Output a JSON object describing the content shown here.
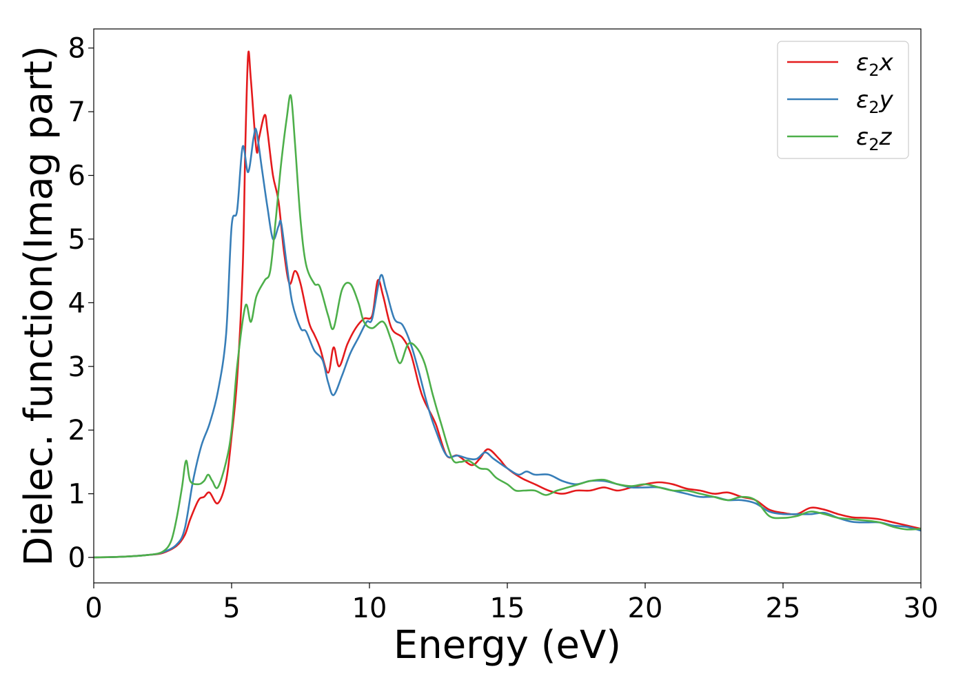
{
  "chart_data": {
    "type": "line",
    "xlabel": "Energy (eV)",
    "ylabel": "Dielec. function(Imag part)",
    "xlim": [
      0,
      30
    ],
    "ylim": [
      -0.4,
      8.3
    ],
    "xticks": [
      0,
      5,
      10,
      15,
      20,
      25,
      30
    ],
    "yticks": [
      0,
      1,
      2,
      3,
      4,
      5,
      6,
      7,
      8
    ],
    "grid": false,
    "legend_position": "top-right",
    "series": [
      {
        "name": "ε₂x",
        "legend_base": "ε",
        "legend_sub": "2",
        "legend_suffix": "x",
        "color": "#e41a1c",
        "points": [
          [
            0,
            0
          ],
          [
            1,
            0.01
          ],
          [
            2,
            0.04
          ],
          [
            2.5,
            0.07
          ],
          [
            3,
            0.18
          ],
          [
            3.3,
            0.35
          ],
          [
            3.5,
            0.6
          ],
          [
            3.8,
            0.9
          ],
          [
            4.0,
            0.95
          ],
          [
            4.2,
            1.02
          ],
          [
            4.5,
            0.85
          ],
          [
            4.8,
            1.2
          ],
          [
            5.0,
            1.9
          ],
          [
            5.2,
            2.8
          ],
          [
            5.4,
            4.5
          ],
          [
            5.5,
            6.5
          ],
          [
            5.6,
            7.9
          ],
          [
            5.7,
            7.5
          ],
          [
            5.9,
            6.4
          ],
          [
            6.0,
            6.6
          ],
          [
            6.2,
            6.95
          ],
          [
            6.3,
            6.7
          ],
          [
            6.5,
            6.0
          ],
          [
            6.7,
            5.6
          ],
          [
            6.9,
            4.8
          ],
          [
            7.1,
            4.3
          ],
          [
            7.3,
            4.5
          ],
          [
            7.5,
            4.3
          ],
          [
            7.8,
            3.7
          ],
          [
            8.0,
            3.5
          ],
          [
            8.2,
            3.3
          ],
          [
            8.5,
            2.9
          ],
          [
            8.7,
            3.3
          ],
          [
            8.9,
            3.0
          ],
          [
            9.2,
            3.35
          ],
          [
            9.5,
            3.6
          ],
          [
            9.8,
            3.75
          ],
          [
            10.1,
            3.8
          ],
          [
            10.3,
            4.35
          ],
          [
            10.5,
            4.1
          ],
          [
            10.8,
            3.6
          ],
          [
            11.2,
            3.45
          ],
          [
            11.5,
            3.2
          ],
          [
            11.8,
            2.7
          ],
          [
            12.0,
            2.45
          ],
          [
            12.4,
            2.1
          ],
          [
            12.8,
            1.6
          ],
          [
            13.2,
            1.6
          ],
          [
            13.7,
            1.45
          ],
          [
            14.0,
            1.55
          ],
          [
            14.3,
            1.7
          ],
          [
            14.7,
            1.55
          ],
          [
            15.0,
            1.4
          ],
          [
            15.5,
            1.25
          ],
          [
            16.0,
            1.15
          ],
          [
            16.5,
            1.05
          ],
          [
            17.0,
            1.0
          ],
          [
            17.5,
            1.05
          ],
          [
            18.0,
            1.05
          ],
          [
            18.5,
            1.1
          ],
          [
            19.0,
            1.05
          ],
          [
            19.5,
            1.1
          ],
          [
            20.0,
            1.15
          ],
          [
            20.5,
            1.18
          ],
          [
            21.0,
            1.15
          ],
          [
            21.5,
            1.08
          ],
          [
            22.0,
            1.05
          ],
          [
            22.5,
            1.0
          ],
          [
            23.0,
            1.02
          ],
          [
            23.5,
            0.95
          ],
          [
            24.0,
            0.9
          ],
          [
            24.5,
            0.75
          ],
          [
            25.0,
            0.7
          ],
          [
            25.5,
            0.68
          ],
          [
            26.0,
            0.78
          ],
          [
            26.5,
            0.75
          ],
          [
            27.0,
            0.68
          ],
          [
            27.5,
            0.63
          ],
          [
            28.0,
            0.62
          ],
          [
            28.5,
            0.6
          ],
          [
            29.0,
            0.55
          ],
          [
            29.5,
            0.5
          ],
          [
            30.0,
            0.45
          ]
        ]
      },
      {
        "name": "ε₂y",
        "legend_base": "ε",
        "legend_sub": "2",
        "legend_suffix": "y",
        "color": "#377eb8",
        "points": [
          [
            0,
            0
          ],
          [
            1,
            0.01
          ],
          [
            2,
            0.04
          ],
          [
            2.5,
            0.08
          ],
          [
            3,
            0.2
          ],
          [
            3.3,
            0.45
          ],
          [
            3.6,
            1.2
          ],
          [
            3.9,
            1.75
          ],
          [
            4.2,
            2.1
          ],
          [
            4.5,
            2.6
          ],
          [
            4.8,
            3.5
          ],
          [
            5.0,
            5.2
          ],
          [
            5.2,
            5.45
          ],
          [
            5.4,
            6.45
          ],
          [
            5.6,
            6.05
          ],
          [
            5.8,
            6.6
          ],
          [
            5.9,
            6.7
          ],
          [
            6.1,
            6.1
          ],
          [
            6.3,
            5.5
          ],
          [
            6.5,
            5.0
          ],
          [
            6.7,
            5.2
          ],
          [
            6.8,
            5.25
          ],
          [
            7.0,
            4.6
          ],
          [
            7.2,
            4.0
          ],
          [
            7.5,
            3.6
          ],
          [
            7.7,
            3.55
          ],
          [
            8.0,
            3.25
          ],
          [
            8.3,
            3.1
          ],
          [
            8.5,
            2.75
          ],
          [
            8.7,
            2.55
          ],
          [
            9.0,
            2.85
          ],
          [
            9.3,
            3.2
          ],
          [
            9.6,
            3.45
          ],
          [
            9.9,
            3.7
          ],
          [
            10.1,
            3.75
          ],
          [
            10.4,
            4.42
          ],
          [
            10.6,
            4.2
          ],
          [
            10.9,
            3.75
          ],
          [
            11.2,
            3.65
          ],
          [
            11.5,
            3.35
          ],
          [
            11.8,
            2.9
          ],
          [
            12.1,
            2.4
          ],
          [
            12.4,
            2.0
          ],
          [
            12.8,
            1.6
          ],
          [
            13.2,
            1.6
          ],
          [
            13.6,
            1.55
          ],
          [
            13.9,
            1.55
          ],
          [
            14.2,
            1.65
          ],
          [
            14.5,
            1.55
          ],
          [
            15.0,
            1.4
          ],
          [
            15.4,
            1.3
          ],
          [
            15.7,
            1.35
          ],
          [
            16.0,
            1.3
          ],
          [
            16.5,
            1.3
          ],
          [
            17.0,
            1.2
          ],
          [
            17.5,
            1.15
          ],
          [
            18.0,
            1.2
          ],
          [
            18.5,
            1.2
          ],
          [
            19.0,
            1.15
          ],
          [
            19.5,
            1.1
          ],
          [
            20.0,
            1.1
          ],
          [
            20.5,
            1.1
          ],
          [
            21.0,
            1.05
          ],
          [
            21.5,
            1.0
          ],
          [
            22.0,
            0.95
          ],
          [
            22.5,
            0.95
          ],
          [
            23.0,
            0.9
          ],
          [
            23.5,
            0.9
          ],
          [
            24.0,
            0.85
          ],
          [
            24.5,
            0.72
          ],
          [
            25.0,
            0.68
          ],
          [
            25.5,
            0.68
          ],
          [
            26.0,
            0.68
          ],
          [
            26.5,
            0.7
          ],
          [
            27.0,
            0.62
          ],
          [
            27.5,
            0.56
          ],
          [
            28.0,
            0.55
          ],
          [
            28.5,
            0.55
          ],
          [
            29.0,
            0.5
          ],
          [
            29.5,
            0.48
          ],
          [
            30.0,
            0.42
          ]
        ]
      },
      {
        "name": "ε₂z",
        "legend_base": "ε",
        "legend_sub": "2",
        "legend_suffix": "z",
        "color": "#4daf4a",
        "points": [
          [
            0,
            0
          ],
          [
            1,
            0.01
          ],
          [
            2,
            0.04
          ],
          [
            2.5,
            0.09
          ],
          [
            2.8,
            0.25
          ],
          [
            3.0,
            0.6
          ],
          [
            3.2,
            1.1
          ],
          [
            3.35,
            1.52
          ],
          [
            3.5,
            1.2
          ],
          [
            3.8,
            1.15
          ],
          [
            4.0,
            1.2
          ],
          [
            4.15,
            1.3
          ],
          [
            4.3,
            1.2
          ],
          [
            4.5,
            1.1
          ],
          [
            4.8,
            1.5
          ],
          [
            5.0,
            2.0
          ],
          [
            5.2,
            3.0
          ],
          [
            5.5,
            3.95
          ],
          [
            5.7,
            3.7
          ],
          [
            5.9,
            4.1
          ],
          [
            6.2,
            4.35
          ],
          [
            6.4,
            4.5
          ],
          [
            6.6,
            5.3
          ],
          [
            6.8,
            6.2
          ],
          [
            7.0,
            6.9
          ],
          [
            7.15,
            7.25
          ],
          [
            7.3,
            6.5
          ],
          [
            7.5,
            5.3
          ],
          [
            7.7,
            4.6
          ],
          [
            8.0,
            4.3
          ],
          [
            8.2,
            4.25
          ],
          [
            8.5,
            3.8
          ],
          [
            8.7,
            3.6
          ],
          [
            9.0,
            4.2
          ],
          [
            9.3,
            4.3
          ],
          [
            9.6,
            4.0
          ],
          [
            9.8,
            3.7
          ],
          [
            10.1,
            3.6
          ],
          [
            10.5,
            3.7
          ],
          [
            10.8,
            3.4
          ],
          [
            11.1,
            3.05
          ],
          [
            11.4,
            3.35
          ],
          [
            11.7,
            3.3
          ],
          [
            12.0,
            3.05
          ],
          [
            12.3,
            2.55
          ],
          [
            12.6,
            2.1
          ],
          [
            13.0,
            1.55
          ],
          [
            13.3,
            1.5
          ],
          [
            13.6,
            1.52
          ],
          [
            14.0,
            1.4
          ],
          [
            14.3,
            1.38
          ],
          [
            14.6,
            1.25
          ],
          [
            15.0,
            1.15
          ],
          [
            15.3,
            1.05
          ],
          [
            15.6,
            1.05
          ],
          [
            16.0,
            1.05
          ],
          [
            16.4,
            0.98
          ],
          [
            16.8,
            1.05
          ],
          [
            17.2,
            1.1
          ],
          [
            17.6,
            1.15
          ],
          [
            18.0,
            1.2
          ],
          [
            18.5,
            1.22
          ],
          [
            19.0,
            1.15
          ],
          [
            19.5,
            1.12
          ],
          [
            20.0,
            1.15
          ],
          [
            20.5,
            1.1
          ],
          [
            21.0,
            1.05
          ],
          [
            21.5,
            1.05
          ],
          [
            22.0,
            1.0
          ],
          [
            22.5,
            0.95
          ],
          [
            23.0,
            0.9
          ],
          [
            23.5,
            0.95
          ],
          [
            24.0,
            0.9
          ],
          [
            24.5,
            0.65
          ],
          [
            25.0,
            0.62
          ],
          [
            25.5,
            0.65
          ],
          [
            26.0,
            0.72
          ],
          [
            26.5,
            0.68
          ],
          [
            27.0,
            0.62
          ],
          [
            27.5,
            0.6
          ],
          [
            28.0,
            0.58
          ],
          [
            28.5,
            0.55
          ],
          [
            29.0,
            0.48
          ],
          [
            29.5,
            0.44
          ],
          [
            30.0,
            0.45
          ]
        ]
      }
    ]
  }
}
